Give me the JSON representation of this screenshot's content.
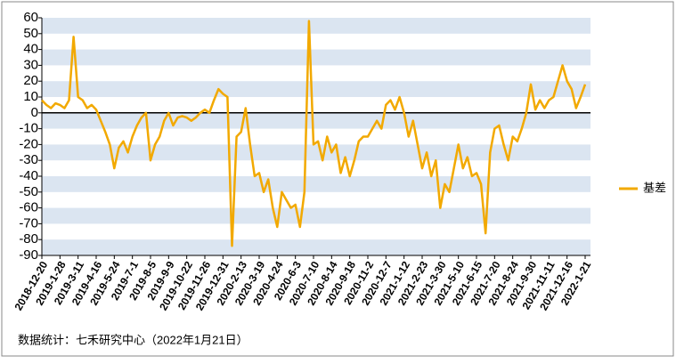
{
  "chart_data": {
    "type": "line",
    "x": [
      "2018-12-20",
      null,
      null,
      null,
      "2019-1-28",
      null,
      null,
      null,
      "2019-3-11",
      null,
      null,
      null,
      "2019-4-16",
      null,
      null,
      null,
      "2019-5-24",
      null,
      null,
      null,
      "2019-7-1",
      null,
      null,
      null,
      "2019-8-5",
      null,
      null,
      null,
      "2019-9-9",
      null,
      null,
      null,
      "2019-10-22",
      null,
      null,
      null,
      "2019-11-26",
      null,
      null,
      null,
      "2019-12-31",
      null,
      null,
      null,
      "2020-2-13",
      null,
      null,
      null,
      "2020-3-19",
      null,
      null,
      null,
      "2020-4-24",
      null,
      null,
      null,
      "2020-6-3",
      null,
      null,
      null,
      "2020-7-10",
      null,
      null,
      null,
      "2020-8-14",
      null,
      null,
      null,
      "2020-9-18",
      null,
      null,
      null,
      "2020-11-2",
      null,
      null,
      null,
      "2020-12-7",
      null,
      null,
      null,
      "2021-1-12",
      null,
      null,
      null,
      "2021-2-23",
      null,
      null,
      null,
      "2021-3-30",
      null,
      null,
      null,
      "2021-5-10",
      null,
      null,
      null,
      "2021-6-15",
      null,
      null,
      null,
      "2021-7-20",
      null,
      null,
      null,
      "2021-8-24",
      null,
      null,
      null,
      "2021-9-30",
      null,
      null,
      null,
      "2021-11-11",
      null,
      null,
      null,
      "2021-12-16",
      null,
      null,
      null,
      "2022-1-21"
    ],
    "series": [
      {
        "name": "基差",
        "color": "#f2a900",
        "values": [
          8,
          5,
          3,
          6,
          5,
          3,
          8,
          48,
          10,
          8,
          3,
          5,
          2,
          -5,
          -12,
          -20,
          -35,
          -22,
          -18,
          -25,
          -15,
          -8,
          -3,
          0,
          -30,
          -20,
          -15,
          -5,
          0,
          -8,
          -3,
          -2,
          -3,
          -5,
          -3,
          0,
          2,
          0,
          8,
          15,
          12,
          10,
          -84,
          -15,
          -12,
          3,
          -20,
          -40,
          -38,
          -50,
          -42,
          -60,
          -72,
          -50,
          -55,
          -60,
          -58,
          -72,
          -50,
          58,
          -20,
          -18,
          -30,
          -15,
          -25,
          -20,
          -38,
          -28,
          -40,
          -30,
          -18,
          -15,
          -15,
          -10,
          -5,
          -10,
          5,
          8,
          2,
          10,
          0,
          -15,
          -5,
          -20,
          -35,
          -25,
          -40,
          -30,
          -60,
          -45,
          -50,
          -35,
          -20,
          -35,
          -28,
          -40,
          -38,
          -45,
          -76,
          -25,
          -10,
          -8,
          -20,
          -30,
          -15,
          -18,
          -10,
          0,
          18,
          2,
          8,
          3,
          8,
          10,
          20,
          30,
          20,
          15,
          3,
          10,
          18
        ]
      }
    ],
    "ylim": [
      -90,
      60
    ],
    "yticks": [
      -90,
      -80,
      -70,
      -60,
      -50,
      -40,
      -30,
      -20,
      -10,
      0,
      10,
      20,
      30,
      40,
      50,
      60
    ],
    "grid": "bands",
    "band_color": "#dbe5f1",
    "zero_line": true,
    "legend": "right",
    "source": "数据统计：七禾研究中心（2022年1月21日）"
  }
}
